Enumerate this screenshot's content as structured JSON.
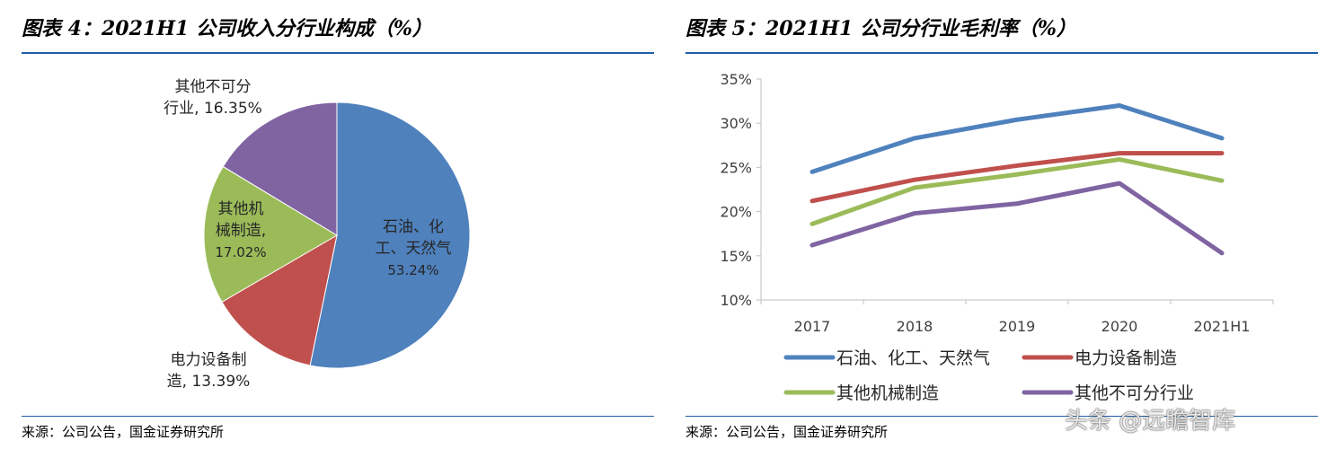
{
  "left": {
    "title": "图表 4：2021H1 公司收入分行业构成（%）",
    "source": "来源：公司公告，国金证券研究所"
  },
  "right": {
    "title": "图表 5：2021H1 公司分行业毛利率（%）",
    "source": "来源：公司公告，国金证券研究所"
  },
  "watermark": "头条 @远瞻智库",
  "chart_data": [
    {
      "type": "pie",
      "title": "图表 4：2021H1 公司收入分行业构成（%）",
      "slices": [
        {
          "label_lines": [
            "石油、化",
            "工、天然气",
            "53.24%"
          ],
          "value": 53.24,
          "color": "#4f81bd"
        },
        {
          "label_lines": [
            "电力设备制",
            "造, 13.39%"
          ],
          "value": 13.39,
          "color": "#c0504d"
        },
        {
          "label_lines": [
            "其他机",
            "械制造,",
            "17.02%"
          ],
          "value": 17.02,
          "color": "#9bbb59"
        },
        {
          "label_lines": [
            "其他不可分",
            "行业, 16.35%"
          ],
          "value": 16.35,
          "color": "#8064a2"
        }
      ]
    },
    {
      "type": "line",
      "title": "图表 5：2021H1 公司分行业毛利率（%）",
      "categories": [
        "2017",
        "2018",
        "2019",
        "2020",
        "2021H1"
      ],
      "ylim": [
        10,
        35
      ],
      "yticks": [
        10,
        15,
        20,
        25,
        30,
        35
      ],
      "ytick_labels": [
        "10%",
        "15%",
        "20%",
        "25%",
        "30%",
        "35%"
      ],
      "grid": false,
      "legend": "bottom",
      "series": [
        {
          "name": "石油、化工、天然气",
          "values": [
            24.5,
            28.3,
            30.4,
            32.0,
            28.3
          ],
          "color": "#4f81bd"
        },
        {
          "name": "电力设备制造",
          "values": [
            21.2,
            23.6,
            25.2,
            26.6,
            26.6
          ],
          "color": "#c0504d"
        },
        {
          "name": "其他机械制造",
          "values": [
            18.6,
            22.7,
            24.2,
            25.9,
            23.5
          ],
          "color": "#9bbb59"
        },
        {
          "name": "其他不可分行业",
          "values": [
            16.2,
            19.8,
            20.9,
            23.2,
            15.3
          ],
          "color": "#8064a2"
        }
      ]
    }
  ]
}
